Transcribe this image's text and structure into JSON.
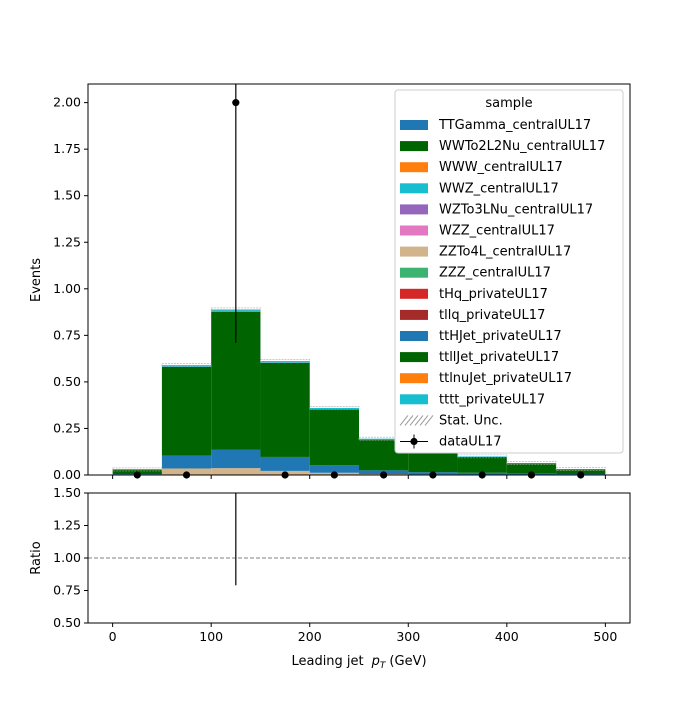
{
  "chart_data": {
    "type": "bar",
    "stacked": true,
    "xlabel_prefix": "Leading jet",
    "xlabel_symbol": "p",
    "xlabel_sub": "T",
    "xlabel_unit": "(GeV)",
    "ylabel": "Events",
    "ratio_ylabel": "Ratio",
    "xlim": [
      -25,
      525
    ],
    "ylim": [
      0,
      2.1
    ],
    "ratio_ylim": [
      0.5,
      1.5
    ],
    "bin_edges": [
      0,
      50,
      100,
      150,
      200,
      250,
      300,
      350,
      400,
      450,
      500
    ],
    "x_ticks": [
      "0",
      "100",
      "200",
      "300",
      "400",
      "500"
    ],
    "x_tick_values": [
      0,
      100,
      200,
      300,
      400,
      500
    ],
    "y_ticks": [
      "0.00",
      "0.25",
      "0.50",
      "0.75",
      "1.00",
      "1.25",
      "1.50",
      "1.75",
      "2.00"
    ],
    "y_tick_values": [
      0,
      0.25,
      0.5,
      0.75,
      1.0,
      1.25,
      1.5,
      1.75,
      2.0
    ],
    "ratio_ticks": [
      "0.50",
      "0.75",
      "1.00",
      "1.25",
      "1.50"
    ],
    "ratio_tick_values": [
      0.5,
      0.75,
      1.0,
      1.25,
      1.5
    ],
    "legend_title": "sample",
    "legend_position": "top-right",
    "series": [
      {
        "name": "TTGamma_centralUL17",
        "color": "#1f77b4",
        "values": [
          0,
          0,
          0,
          0,
          0,
          0,
          0,
          0,
          0,
          0
        ]
      },
      {
        "name": "WWTo2L2Nu_centralUL17",
        "color": "#006400",
        "values": [
          0,
          0,
          0,
          0,
          0,
          0,
          0,
          0,
          0,
          0
        ]
      },
      {
        "name": "WWW_centralUL17",
        "color": "#ff7f0e",
        "values": [
          0,
          0,
          0,
          0,
          0,
          0,
          0,
          0,
          0,
          0
        ]
      },
      {
        "name": "WWZ_centralUL17",
        "color": "#17becf",
        "values": [
          0,
          0,
          0,
          0,
          0,
          0,
          0,
          0,
          0,
          0
        ]
      },
      {
        "name": "WZTo3LNu_centralUL17",
        "color": "#9467bd",
        "values": [
          0,
          0,
          0,
          0,
          0,
          0,
          0,
          0,
          0,
          0
        ]
      },
      {
        "name": "WZZ_centralUL17",
        "color": "#e377c2",
        "values": [
          0,
          0,
          0,
          0,
          0,
          0,
          0,
          0,
          0,
          0
        ]
      },
      {
        "name": "ZZTo4L_centralUL17",
        "color": "#d2b48c",
        "values": [
          0.003,
          0.035,
          0.037,
          0.022,
          0.012,
          0.005,
          0.003,
          0.002,
          0.001,
          0.001
        ]
      },
      {
        "name": "ZZZ_centralUL17",
        "color": "#3cb371",
        "values": [
          0,
          0,
          0,
          0,
          0,
          0,
          0,
          0,
          0,
          0
        ]
      },
      {
        "name": "tHq_privateUL17",
        "color": "#d62728",
        "values": [
          0,
          0,
          0,
          0,
          0,
          0,
          0,
          0,
          0,
          0
        ]
      },
      {
        "name": "tllq_privateUL17",
        "color": "#a52a2a",
        "values": [
          0,
          0,
          0,
          0,
          0,
          0,
          0,
          0,
          0,
          0
        ]
      },
      {
        "name": "ttHJet_privateUL17",
        "color": "#1f77b4",
        "values": [
          0.002,
          0.07,
          0.1,
          0.075,
          0.04,
          0.02,
          0.012,
          0.01,
          0.006,
          0.004
        ]
      },
      {
        "name": "ttllJet_privateUL17",
        "color": "#006400",
        "values": [
          0.025,
          0.475,
          0.74,
          0.505,
          0.3,
          0.165,
          0.145,
          0.085,
          0.055,
          0.025
        ]
      },
      {
        "name": "ttlnuJet_privateUL17",
        "color": "#ff7f0e",
        "values": [
          0,
          0,
          0,
          0,
          0,
          0,
          0,
          0,
          0,
          0
        ]
      },
      {
        "name": "tttt_privateUL17",
        "color": "#17becf",
        "values": [
          0,
          0.01,
          0.012,
          0.01,
          0.008,
          0.005,
          0.004,
          0.003,
          0.002,
          0.002
        ]
      }
    ],
    "stat_unc_label": "Stat. Unc.",
    "data": {
      "name": "dataUL17",
      "x": [
        25,
        75,
        125,
        175,
        225,
        275,
        325,
        375,
        425,
        475
      ],
      "y": [
        0,
        0,
        2.0,
        0,
        0,
        0,
        0,
        0,
        0,
        0
      ],
      "yerr": [
        0,
        0,
        1.29,
        0,
        0,
        0,
        0,
        0,
        0,
        0
      ]
    },
    "ratio": {
      "reference": 1.0,
      "x": [
        125
      ],
      "yerr_low": [
        0.79
      ],
      "yerr_high": [
        1.5
      ]
    }
  }
}
